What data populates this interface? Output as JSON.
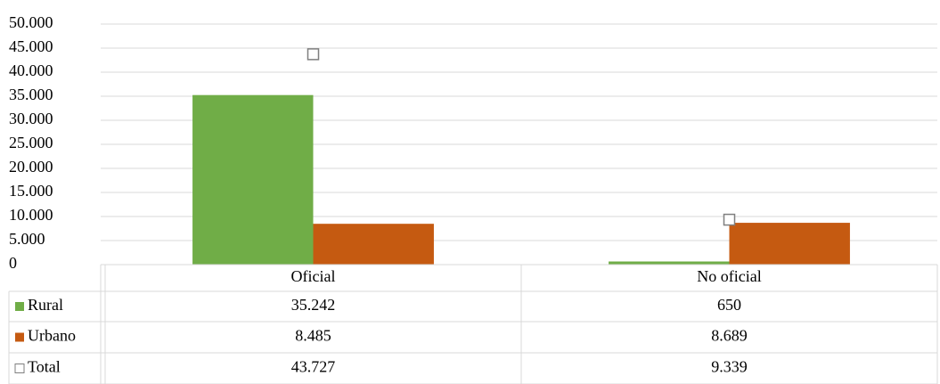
{
  "chart_data": {
    "type": "bar",
    "categories": [
      "Oficial",
      "No oficial"
    ],
    "series": [
      {
        "name": "Rural",
        "color": "#70ad47",
        "values": [
          35242,
          650
        ],
        "value_labels": [
          "35.242",
          "650"
        ]
      },
      {
        "name": "Urbano",
        "color": "#c55a11",
        "values": [
          8485,
          8689
        ],
        "value_labels": [
          "8.485",
          "8.689"
        ]
      },
      {
        "name": "Total",
        "color": "#7f7f7f",
        "marker": "square",
        "values": [
          43727,
          9339
        ],
        "value_labels": [
          "43.727",
          "9.339"
        ]
      }
    ],
    "ylim": [
      0,
      50000
    ],
    "yticks": [
      0,
      {
        "value": 5000,
        "label": "5.000"
      },
      {
        "value": 10000,
        "label": "10.000"
      },
      {
        "value": 15000,
        "label": "15.000"
      },
      {
        "value": 20000,
        "label": "20.000"
      },
      {
        "value": 25000,
        "label": "25.000"
      },
      {
        "value": 30000,
        "label": "30.000"
      },
      {
        "value": 35000,
        "label": "35.000"
      },
      {
        "value": 40000,
        "label": "40.000"
      },
      {
        "value": 45000,
        "label": "45.000"
      },
      {
        "value": 50000,
        "label": "50.000"
      }
    ],
    "grid": true
  }
}
